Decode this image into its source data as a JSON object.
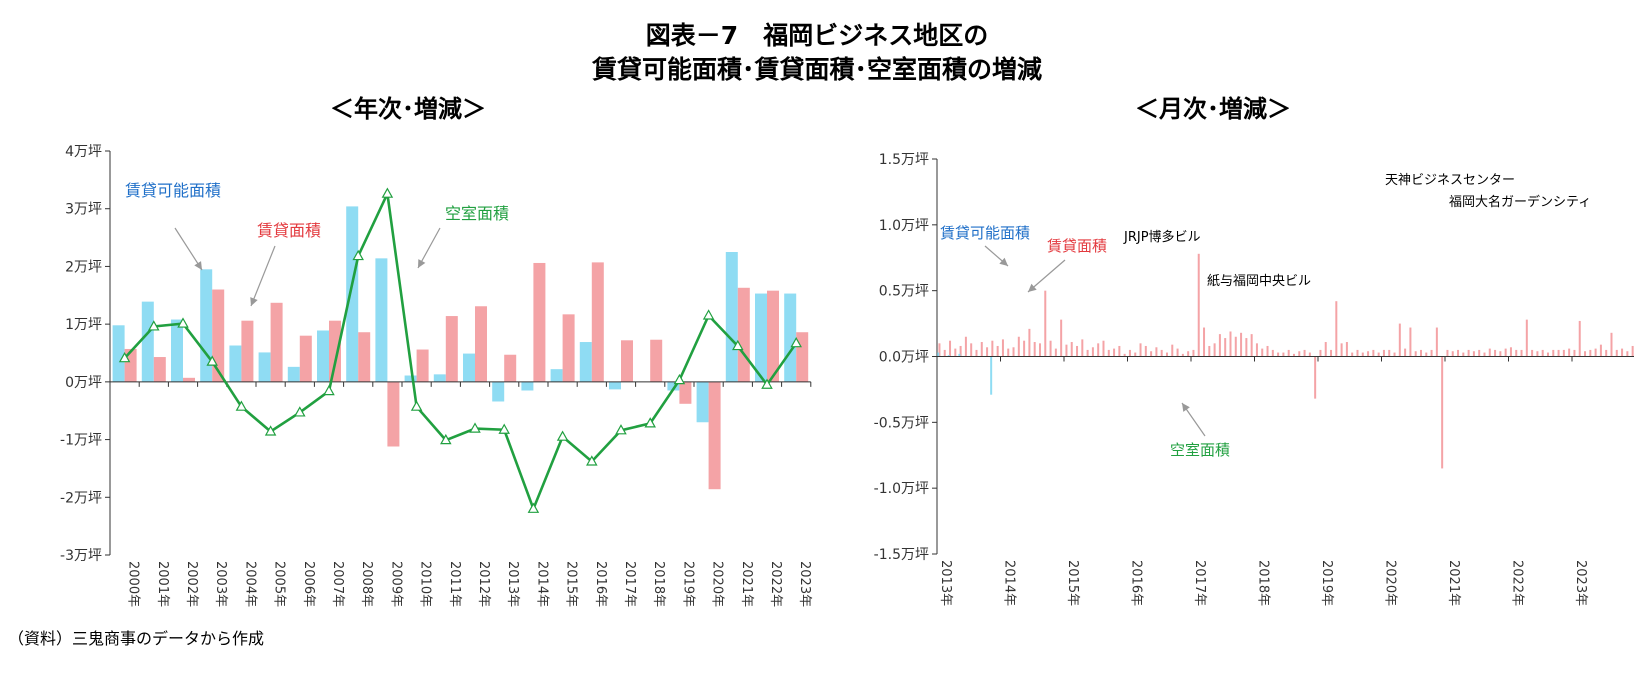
{
  "title_line1": "図表－7　福岡ビジネス地区の",
  "title_line2": "賃貸可能面積･賃貸面積･空室面積の増減",
  "source": "（資料）三鬼商事のデータから作成",
  "colors": {
    "rentable": "#8fdcf3",
    "leased": "#f4a3a6",
    "vacant": "#21a040",
    "label_rentable": "#1f6fc8",
    "label_leased": "#e3393e",
    "label_vacant": "#21a040"
  },
  "chart_data": [
    {
      "type": "bar+line",
      "subtitle": "＜年次･増減＞",
      "categories": [
        "2000年",
        "2001年",
        "2002年",
        "2003年",
        "2004年",
        "2005年",
        "2006年",
        "2007年",
        "2008年",
        "2009年",
        "2010年",
        "2011年",
        "2012年",
        "2013年",
        "2014年",
        "2015年",
        "2016年",
        "2017年",
        "2018年",
        "2019年",
        "2020年",
        "2021年",
        "2022年",
        "2023年"
      ],
      "ylim": [
        -3,
        4
      ],
      "yticks": [
        4,
        3,
        2,
        1,
        0,
        -1,
        -2,
        -3
      ],
      "ytick_labels": [
        "4万坪",
        "3万坪",
        "2万坪",
        "1万坪",
        "0万坪",
        "-1万坪",
        "-2万坪",
        "-3万坪"
      ],
      "series": [
        {
          "name": "賃貸可能面積",
          "kind": "bar",
          "values": [
            0.98,
            1.39,
            1.08,
            1.95,
            0.63,
            0.51,
            0.26,
            0.89,
            3.04,
            2.14,
            0.11,
            0.13,
            0.49,
            -0.34,
            -0.15,
            0.22,
            0.69,
            -0.13,
            0.0,
            -0.15,
            -0.7,
            2.25,
            1.53,
            1.53
          ]
        },
        {
          "name": "賃貸面積",
          "kind": "bar",
          "values": [
            0.57,
            0.43,
            0.07,
            1.6,
            1.06,
            1.37,
            0.8,
            1.06,
            0.86,
            -1.12,
            0.56,
            1.14,
            1.31,
            0.47,
            2.06,
            1.17,
            2.07,
            0.72,
            0.73,
            -0.38,
            -1.86,
            1.63,
            1.58,
            0.86
          ]
        },
        {
          "name": "空室面積",
          "kind": "line",
          "values": [
            0.41,
            0.96,
            1.01,
            0.35,
            -0.43,
            -0.86,
            -0.53,
            -0.16,
            2.18,
            3.26,
            -0.43,
            -1.01,
            -0.81,
            -0.83,
            -2.2,
            -0.95,
            -1.38,
            -0.84,
            -0.72,
            0.03,
            1.15,
            0.62,
            -0.05,
            0.67
          ]
        }
      ],
      "annotations": [
        "賃貸可能面積",
        "賃貸面積",
        "空室面積"
      ]
    },
    {
      "type": "bar+line",
      "subtitle": "＜月次･増減＞",
      "x_start": "2013-01",
      "x_end": "2023-12",
      "xtick_labels": [
        "2013年",
        "2014年",
        "2015年",
        "2016年",
        "2017年",
        "2018年",
        "2019年",
        "2020年",
        "2021年",
        "2022年",
        "2023年"
      ],
      "ylim": [
        -1.5,
        1.5
      ],
      "yticks": [
        1.5,
        1.0,
        0.5,
        0.0,
        -0.5,
        -1.0,
        -1.5
      ],
      "ytick_labels": [
        "1.5万坪",
        "1.0万坪",
        "0.5万坪",
        "0.0万坪",
        "-0.5万坪",
        "-1.0万坪",
        "-1.5万坪"
      ],
      "series": [
        {
          "name": "賃貸可能面積",
          "kind": "bar",
          "values": [
            0.03,
            0.0,
            0.01,
            0.0,
            0.02,
            0.0,
            0.0,
            0.0,
            0.0,
            0.0,
            -0.29,
            0.0,
            0.0,
            0.0,
            0.0,
            0.0,
            0.0,
            0.0,
            0.0,
            0.0,
            0.0,
            0.0,
            0.0,
            0.0,
            0.0,
            0.0,
            0.0,
            0.0,
            0.0,
            0.0,
            0.0,
            0.0,
            0.0,
            0.0,
            0.0,
            0.0,
            0.0,
            0.0,
            0.0,
            0.0,
            0.0,
            0.0,
            0.0,
            0.0,
            0.0,
            0.0,
            0.0,
            0.0,
            0.0,
            0.0,
            0.0,
            0.0,
            0.0,
            0.0,
            0.0,
            0.0,
            0.0,
            0.0,
            0.0,
            0.0,
            0.0,
            0.0,
            0.0,
            0.0,
            0.0,
            0.0,
            0.0,
            0.0,
            0.0,
            0.0,
            0.0,
            0.0,
            0.0,
            0.0,
            0.0,
            0.0,
            0.0,
            0.0,
            0.0,
            0.0,
            0.0,
            0.0,
            0.0,
            0.0,
            0.0,
            0.0,
            0.0,
            0.0,
            0.0,
            0.0,
            0.0,
            0.0,
            0.0,
            0.0,
            0.0,
            0.0,
            0.0,
            0.0,
            0.0,
            0.0,
            0.0,
            0.0,
            0.0,
            0.0,
            0.0,
            0.0,
            0.0,
            0.0,
            0.0,
            0.0,
            0.0,
            0.0,
            0.0,
            0.0,
            0.0,
            0.0,
            0.0,
            0.0,
            0.0,
            0.0,
            0.0,
            0.0,
            0.0,
            0.0,
            0.0,
            0.0,
            0.0,
            0.0,
            0.0,
            0.0,
            0.0,
            0.0
          ]
        },
        {
          "name": "賃貸面積",
          "kind": "bar",
          "values": [
            0.1,
            0.05,
            0.12,
            0.06,
            0.08,
            0.15,
            0.1,
            0.05,
            0.11,
            0.07,
            0.12,
            0.08,
            0.13,
            0.06,
            0.07,
            0.15,
            0.12,
            0.21,
            0.11,
            0.1,
            0.5,
            0.12,
            0.06,
            0.28,
            0.09,
            0.11,
            0.08,
            0.13,
            0.05,
            0.07,
            0.1,
            0.12,
            0.05,
            0.06,
            0.08,
            0.02,
            0.05,
            0.03,
            0.1,
            0.08,
            0.04,
            0.07,
            0.05,
            0.03,
            0.09,
            0.06,
            0.02,
            0.04,
            0.05,
            0.78,
            0.22,
            0.08,
            0.1,
            0.17,
            0.14,
            0.19,
            0.15,
            0.18,
            0.14,
            0.17,
            0.1,
            0.06,
            0.08,
            0.05,
            0.03,
            0.03,
            0.05,
            0.02,
            0.04,
            0.05,
            0.03,
            -0.32,
            0.05,
            0.11,
            0.05,
            0.42,
            0.1,
            0.11,
            0.03,
            0.05,
            0.03,
            0.04,
            0.05,
            0.03,
            0.05,
            0.05,
            0.03,
            0.25,
            0.06,
            0.22,
            0.04,
            0.05,
            0.03,
            0.05,
            0.22,
            -0.85,
            0.05,
            0.04,
            0.05,
            0.03,
            0.05,
            0.04,
            0.05,
            0.03,
            0.06,
            0.05,
            0.04,
            0.06,
            0.07,
            0.05,
            0.05,
            0.28,
            0.05,
            0.04,
            0.05,
            0.03,
            0.05,
            0.05,
            0.05,
            0.06,
            0.05,
            0.27,
            0.04,
            0.05,
            0.06,
            0.09,
            0.05,
            0.18,
            0.05,
            0.06,
            0.04,
            0.08
          ]
        }
      ],
      "annotations": [
        "賃貸可能面積",
        "賃貸面積",
        "空室面積",
        "JRJP博多ビル",
        "紙与福岡中央ビル",
        "天神ビジネスセンター",
        "福岡大名ガーデンシティ"
      ]
    }
  ]
}
